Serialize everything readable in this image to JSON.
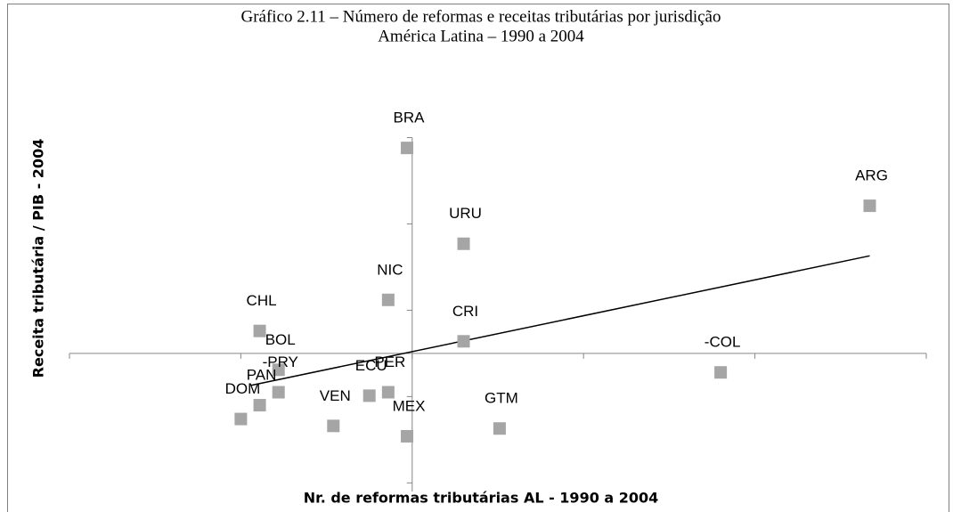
{
  "chart_data": {
    "type": "scatter",
    "title": "Gráfico 2.11 – Número de reformas e receitas tributárias por jurisdição",
    "subtitle": "América Latina – 1990 a 2004",
    "x_label": "Nr. de reformas tributárias AL - 1990 a 2004",
    "y_label": "Receita tributária / PIB - 2004",
    "labels": [
      "BRA",
      "ARG",
      "URU",
      "NIC",
      "CHL",
      "CRI",
      "-COL",
      "BOL",
      "-PRY",
      "PAN",
      "DOM",
      "ECU",
      "PER",
      "VEN",
      "MEX",
      "GTM"
    ],
    "x": [
      -0.03,
      2.67,
      0.3,
      -0.14,
      -0.89,
      0.3,
      1.8,
      -0.78,
      -0.78,
      -0.89,
      -1.0,
      -0.25,
      -0.14,
      -0.46,
      -0.03,
      0.51
    ],
    "y": [
      2.38,
      1.71,
      1.27,
      0.62,
      0.26,
      0.14,
      -0.22,
      -0.19,
      -0.45,
      -0.6,
      -0.76,
      -0.49,
      -0.45,
      -0.84,
      -0.96,
      -0.87
    ],
    "color": "#a5a5a5",
    "trendline": {
      "x": [
        -0.94,
        2.67
      ],
      "y": [
        -0.37,
        1.13
      ],
      "color": "#000000"
    },
    "xlim": [
      -2,
      3
    ],
    "ylim": [
      -1.6,
      2.5
    ],
    "xticks": [
      -2,
      -1,
      0,
      1,
      2,
      3
    ],
    "yticks": [
      -1.5,
      -0.5,
      0.5,
      1.5,
      2.5
    ]
  }
}
